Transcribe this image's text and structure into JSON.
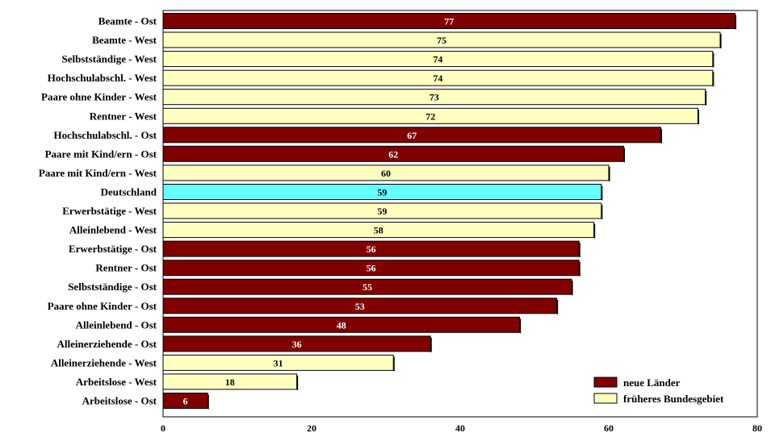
{
  "colors": {
    "ost": "#800000",
    "west": "#ffffc0",
    "deutschland": "#66ffff",
    "border": "#000000"
  },
  "chart_data": {
    "type": "bar",
    "orientation": "horizontal",
    "title": "",
    "xlabel": "",
    "ylabel": "",
    "xlim": [
      0,
      80
    ],
    "x_ticks": [
      0,
      20,
      40,
      60,
      80
    ],
    "grid": false,
    "legend_position": "bottom-right",
    "legend": [
      {
        "label": "neue Länder",
        "group": "ost"
      },
      {
        "label": "früheres Bundesgebiet",
        "group": "west"
      }
    ],
    "categories": [
      "Beamte - Ost",
      "Beamte - West",
      "Selbstständige - West",
      "Hochschulabschl. - West",
      "Paare ohne Kinder - West",
      "Rentner - West",
      "Hochschulabschl. - Ost",
      "Paare mit Kind/ern - Ost",
      "Paare mit Kind/ern - West",
      "Deutschland",
      "Erwerbstätige - West",
      "Alleinlebend - West",
      "Erwerbstätige - Ost",
      "Rentner - Ost",
      "Selbstständige - Ost",
      "Paare ohne Kinder - Ost",
      "Alleinlebend - Ost",
      "Alleinerziehende - Ost",
      "Alleinerziehende - West",
      "Arbeitslose - West",
      "Arbeitslose - Ost"
    ],
    "values": [
      77,
      75,
      74,
      74,
      73,
      72,
      67,
      62,
      60,
      59,
      59,
      58,
      56,
      56,
      55,
      53,
      48,
      36,
      31,
      18,
      6
    ],
    "groups": [
      "ost",
      "west",
      "west",
      "west",
      "west",
      "west",
      "ost",
      "ost",
      "west",
      "deutschland",
      "west",
      "west",
      "ost",
      "ost",
      "ost",
      "ost",
      "ost",
      "ost",
      "west",
      "west",
      "ost"
    ]
  }
}
